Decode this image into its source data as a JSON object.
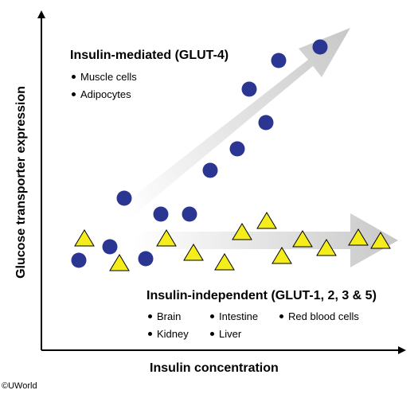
{
  "axes": {
    "x_label": "Insulin concentration",
    "y_label": "Glucose transporter expression"
  },
  "insulin_mediated": {
    "heading": "Insulin-mediated (GLUT-4)",
    "items": [
      "Muscle cells",
      "Adipocytes"
    ]
  },
  "insulin_independent": {
    "heading": "Insulin-independent (GLUT-1, 2, 3 & 5)",
    "items": [
      "Brain",
      "Intestine",
      "Red blood cells",
      "Kidney",
      "Liver"
    ]
  },
  "copyright": "©UWorld",
  "colors": {
    "circle": "#2b3592",
    "triangle_fill": "#f5ec1c",
    "arrow": "#d9d9d9"
  }
}
